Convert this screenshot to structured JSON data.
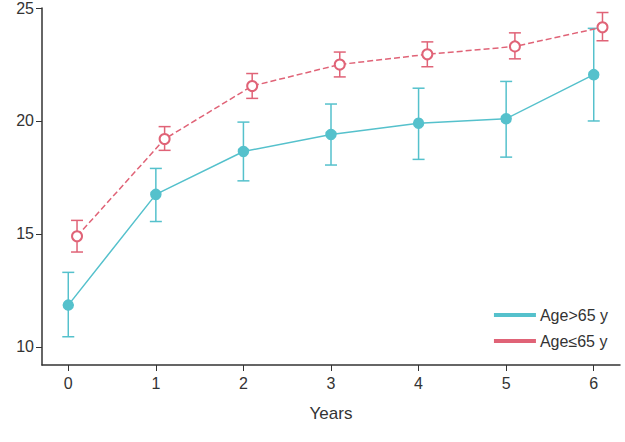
{
  "chart_data": {
    "type": "line",
    "x_label": "Years",
    "xlim": [
      -0.3,
      6.3
    ],
    "xticks": [
      0,
      1,
      2,
      3,
      4,
      5,
      6
    ],
    "ylim": [
      9.2,
      25
    ],
    "yticks": [
      10,
      15,
      20,
      25
    ],
    "grid": false,
    "legend": "lower right",
    "series": [
      {
        "name": "Age>65 y",
        "color": "#55c1cc",
        "marker": "filled circle",
        "line_style": "solid",
        "x": [
          0,
          1,
          2,
          3,
          4,
          5,
          6
        ],
        "values": [
          11.85,
          16.75,
          18.65,
          19.4,
          19.9,
          20.1,
          22.05
        ],
        "lower": [
          10.45,
          15.55,
          17.35,
          18.05,
          18.3,
          18.4,
          20.0
        ],
        "upper": [
          13.3,
          17.9,
          19.95,
          20.75,
          21.45,
          21.75,
          24.1
        ]
      },
      {
        "name": "Age≤65 y",
        "color": "#e06377",
        "marker": "open circle",
        "line_style": "dashed",
        "x": [
          0.1,
          1.1,
          2.1,
          3.1,
          4.1,
          5.1,
          6.1
        ],
        "values": [
          14.9,
          19.2,
          21.55,
          22.5,
          22.95,
          23.3,
          24.15
        ],
        "lower": [
          14.2,
          18.7,
          21.0,
          21.95,
          22.4,
          22.75,
          23.55
        ],
        "upper": [
          15.6,
          19.75,
          22.1,
          23.05,
          23.5,
          23.9,
          24.8
        ]
      }
    ]
  }
}
